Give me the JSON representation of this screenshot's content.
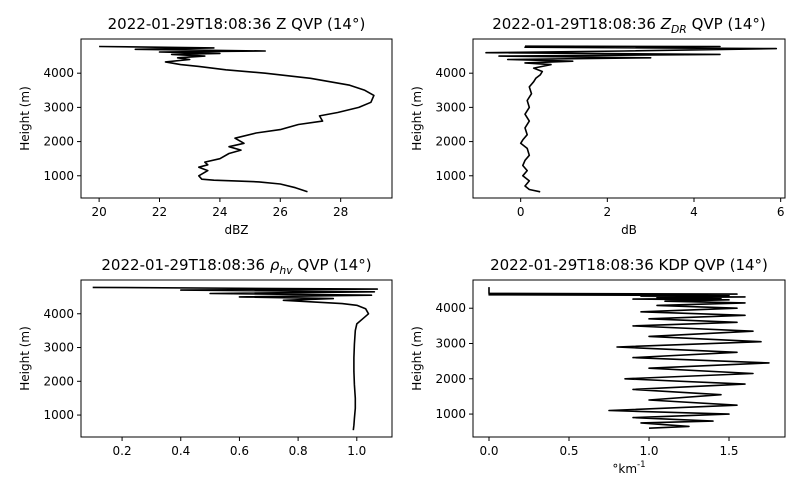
{
  "chart_data": [
    {
      "type": "line",
      "title": "2022-01-29T18:08:36 Z QVP (14°)",
      "xlabel": "dBZ",
      "ylabel": "Height (m)",
      "xlim": [
        19.4,
        29.7
      ],
      "ylim": [
        350,
        5000
      ],
      "xticks": [
        20,
        22,
        24,
        26,
        28
      ],
      "yticks": [
        1000,
        2000,
        3000,
        4000
      ],
      "series": [
        {
          "x": [
            26.9,
            26.5,
            26.0,
            25.3,
            24.5,
            23.8,
            23.4,
            23.3,
            23.6,
            23.3,
            23.6,
            23.5,
            24.0,
            24.3,
            24.7,
            24.3,
            24.8,
            24.5,
            25.2,
            26.0,
            26.6,
            27.4,
            27.3,
            27.9,
            28.6,
            29.0,
            29.1,
            28.8,
            28.3,
            27.0,
            25.5,
            24.2,
            23.3,
            22.7,
            22.2,
            23.0,
            22.6,
            23.5,
            22.4,
            24.0,
            22.0,
            25.5,
            21.2,
            23.8,
            20.0
          ],
          "y": [
            530,
            650,
            760,
            820,
            850,
            870,
            900,
            1000,
            1150,
            1250,
            1320,
            1400,
            1500,
            1650,
            1750,
            1850,
            1950,
            2100,
            2250,
            2350,
            2500,
            2600,
            2750,
            2850,
            3000,
            3150,
            3350,
            3500,
            3650,
            3850,
            4000,
            4100,
            4200,
            4250,
            4330,
            4400,
            4450,
            4500,
            4550,
            4580,
            4620,
            4650,
            4700,
            4740,
            4780
          ]
        }
      ]
    },
    {
      "type": "line",
      "title": "2022-01-29T18:08:36 $Z_{DR}$ QVP (14°)",
      "xlabel": "dB",
      "ylabel": "Height (m)",
      "xlim": [
        -1.1,
        6.1
      ],
      "ylim": [
        350,
        5000
      ],
      "xticks": [
        0,
        2,
        4,
        6
      ],
      "yticks": [
        1000,
        2000,
        3000,
        4000
      ],
      "series": [
        {
          "x": [
            0.45,
            0.2,
            0.1,
            0.2,
            0.05,
            0.15,
            0.05,
            0.1,
            0.2,
            0.15,
            0.0,
            0.05,
            0.15,
            0.1,
            0.2,
            0.1,
            0.2,
            0.15,
            0.25,
            0.2,
            0.3,
            0.35,
            0.45,
            0.5,
            0.3,
            0.7,
            0.1,
            1.2,
            -0.3,
            3.0,
            -0.5,
            4.6,
            -0.8,
            2.4,
            5.9,
            0.1,
            4.6,
            0.1
          ],
          "y": [
            530,
            600,
            700,
            850,
            1000,
            1150,
            1300,
            1450,
            1600,
            1800,
            1950,
            2050,
            2200,
            2400,
            2600,
            2800,
            3000,
            3200,
            3400,
            3600,
            3750,
            3850,
            3950,
            4050,
            4150,
            4250,
            4300,
            4350,
            4400,
            4450,
            4500,
            4550,
            4600,
            4650,
            4720,
            4760,
            4780,
            4790
          ]
        }
      ]
    },
    {
      "type": "line",
      "title": "2022-01-29T18:08:36 $\\rho_{hv}$ QVP (14°)",
      "xlabel": "",
      "ylabel": "Height (m)",
      "xlim": [
        0.06,
        1.12
      ],
      "ylim": [
        350,
        5000
      ],
      "xticks": [
        0.2,
        0.4,
        0.6,
        0.8,
        1.0
      ],
      "yticks": [
        1000,
        2000,
        3000,
        4000
      ],
      "series": [
        {
          "x": [
            0.988,
            0.99,
            0.992,
            0.995,
            0.995,
            0.992,
            0.99,
            0.99,
            0.992,
            0.995,
            1.0,
            1.02,
            1.04,
            1.03,
            1.0,
            0.95,
            0.85,
            0.75,
            0.92,
            0.6,
            1.05,
            0.5,
            1.06,
            0.4,
            1.07,
            0.1
          ],
          "y": [
            550,
            700,
            900,
            1200,
            1500,
            1900,
            2300,
            2700,
            3100,
            3500,
            3700,
            3850,
            4000,
            4150,
            4250,
            4300,
            4350,
            4400,
            4450,
            4500,
            4550,
            4600,
            4650,
            4700,
            4730,
            4780
          ]
        }
      ]
    },
    {
      "type": "line",
      "title": "2022-01-29T18:08:36 KDP QVP (14°)",
      "xlabel": "°km$^{-1}$",
      "ylabel": "Height (m)",
      "xlim": [
        -0.1,
        1.85
      ],
      "ylim": [
        350,
        4800
      ],
      "xticks": [
        0.0,
        0.5,
        1.0,
        1.5
      ],
      "yticks": [
        1000,
        2000,
        3000,
        4000
      ],
      "series": [
        {
          "x": [
            1.0,
            1.25,
            0.95,
            1.4,
            0.9,
            1.5,
            0.75,
            1.55,
            1.0,
            1.45,
            0.9,
            1.6,
            0.85,
            1.65,
            1.0,
            1.75,
            0.9,
            1.55,
            0.8,
            1.7,
            1.0,
            1.65,
            0.9,
            1.55,
            1.0,
            1.6,
            0.95,
            1.55,
            1.05,
            1.6,
            1.1,
            1.5,
            0.9,
            1.45,
            1.05,
            1.6,
            0.95,
            1.5,
            0.0,
            1.55,
            0.0,
            0.0,
            0.0
          ],
          "y": [
            600,
            650,
            750,
            800,
            900,
            1000,
            1100,
            1250,
            1400,
            1550,
            1700,
            1850,
            2000,
            2150,
            2300,
            2450,
            2600,
            2750,
            2900,
            3050,
            3200,
            3350,
            3500,
            3600,
            3700,
            3800,
            3900,
            4000,
            4080,
            4150,
            4200,
            4240,
            4260,
            4280,
            4300,
            4320,
            4340,
            4360,
            4380,
            4400,
            4420,
            4500,
            4600
          ]
        }
      ]
    }
  ]
}
